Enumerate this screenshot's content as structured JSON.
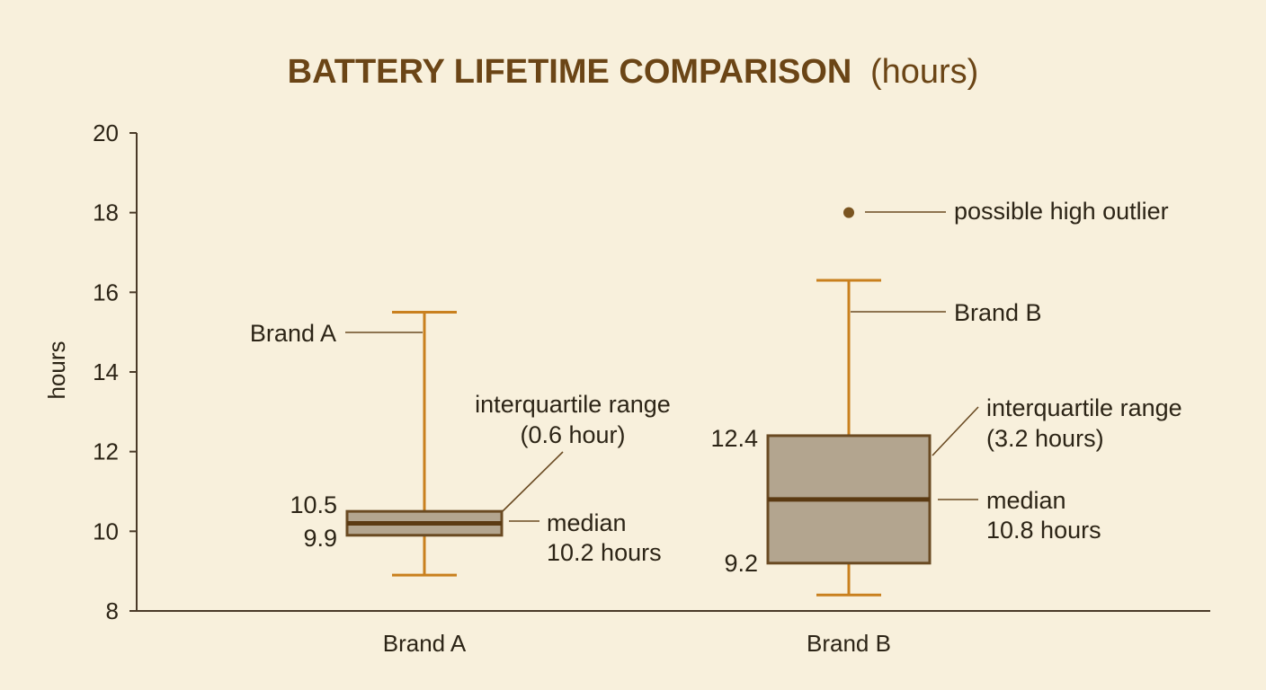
{
  "colors": {
    "background": "#f8f0dc",
    "axis": "#4a3a28",
    "whisker": "#c9801e",
    "box_fill": "#b3a58f",
    "box_edge": "#6a4a22",
    "median": "#5b3a12",
    "outlier": "#7a5420",
    "title": "#6b4516"
  },
  "chart_data": {
    "type": "box",
    "title": "BATTERY LIFETIME COMPARISON",
    "title_suffix": "(hours)",
    "xlabel": "",
    "ylabel": "hours",
    "ylim": [
      8,
      20
    ],
    "yticks": [
      8,
      10,
      12,
      14,
      16,
      18,
      20
    ],
    "categories": [
      "Brand A",
      "Brand B"
    ],
    "grid": false,
    "series": [
      {
        "name": "Brand A",
        "whisker_low": 8.9,
        "q1": 9.9,
        "median": 10.2,
        "q3": 10.5,
        "whisker_high": 15.5,
        "outliers": []
      },
      {
        "name": "Brand B",
        "whisker_low": 8.4,
        "q1": 9.2,
        "median": 10.8,
        "q3": 12.4,
        "whisker_high": 16.3,
        "outliers": [
          18
        ]
      }
    ],
    "annotations": {
      "brand_a": {
        "series_label": "Brand A",
        "iqr_line1": "interquartile range",
        "iqr_line2": "(0.6 hour)",
        "median_line1": "median",
        "median_line2": "10.2 hours",
        "q3_label": "10.5",
        "q1_label": "9.9"
      },
      "brand_b": {
        "series_label": "Brand B",
        "iqr_line1": "interquartile range",
        "iqr_line2": "(3.2 hours)",
        "median_line1": "median",
        "median_line2": "10.8 hours",
        "q3_label": "12.4",
        "q1_label": "9.2",
        "outlier_label": "possible high outlier"
      }
    }
  }
}
